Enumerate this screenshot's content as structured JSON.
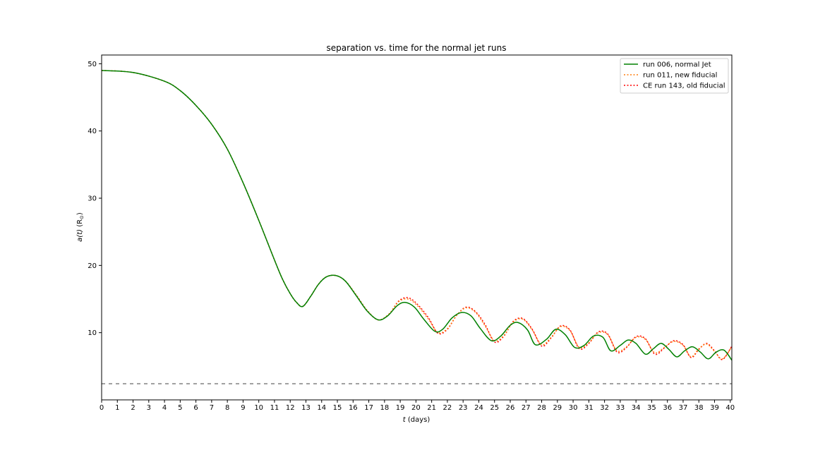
{
  "chart_data": {
    "type": "line",
    "title": "separation vs. time for the normal jet runs",
    "xlabel_italic": "t",
    "xlabel_rest": " (days)",
    "ylabel_italic": "a(t)",
    "ylabel_rest": " (R",
    "ylabel_sub": "⊙",
    "ylabel_close": ")",
    "xlim": [
      0,
      40.1
    ],
    "ylim": [
      0,
      51.3
    ],
    "xticks": [
      0,
      1,
      2,
      3,
      4,
      5,
      6,
      7,
      8,
      9,
      10,
      11,
      12,
      13,
      14,
      15,
      16,
      17,
      18,
      19,
      20,
      21,
      22,
      23,
      24,
      25,
      26,
      27,
      28,
      29,
      30,
      31,
      32,
      33,
      34,
      35,
      36,
      37,
      38,
      39,
      40
    ],
    "yticks": [
      10,
      20,
      30,
      40,
      50
    ],
    "grid": false,
    "legend_position": "top-right",
    "reference_line": {
      "y": 2.4,
      "style": "dashed",
      "color": "#808080"
    },
    "series": [
      {
        "name": "run 006, normal Jet",
        "color": "#008000",
        "style": "solid",
        "x": [
          0,
          2,
          4,
          5,
          6,
          7,
          8,
          9,
          10,
          11,
          11.5,
          12,
          12.4,
          12.8,
          13.3,
          13.8,
          14.3,
          14.9,
          15.5,
          16.2,
          16.9,
          17.6,
          18.2,
          18.8,
          19.3,
          19.9,
          20.5,
          21.2,
          21.7,
          22.3,
          22.9,
          23.5,
          24.1,
          24.8,
          25.4,
          26,
          26.5,
          27.1,
          27.6,
          28.3,
          28.9,
          29.5,
          30.1,
          30.7,
          31.3,
          31.9,
          32.4,
          33,
          33.5,
          34,
          34.6,
          35.1,
          35.6,
          36.1,
          36.6,
          37.1,
          37.6,
          38.1,
          38.6,
          39.1,
          39.6,
          40.1
        ],
        "y": [
          49,
          48.7,
          47.4,
          46,
          43.8,
          41,
          37.3,
          32.3,
          26.7,
          20.8,
          18,
          15.8,
          14.5,
          13.9,
          15.4,
          17.2,
          18.3,
          18.5,
          17.7,
          15.5,
          13.2,
          11.9,
          12.5,
          14,
          14.5,
          13.8,
          12,
          10.2,
          10.5,
          12.2,
          13,
          12.5,
          10.6,
          8.8,
          9.5,
          11.1,
          11.5,
          10.4,
          8.2,
          9,
          10.5,
          9.7,
          7.8,
          8.1,
          9.5,
          9.3,
          7.3,
          8.1,
          8.9,
          8.4,
          6.8,
          7.6,
          8.4,
          7.5,
          6.4,
          7.3,
          7.9,
          7.1,
          6.1,
          7.1,
          7.4,
          5.9
        ]
      },
      {
        "name": "run 011, new fiducial",
        "color": "#ff7f0e",
        "style": "dotted",
        "x": [
          0,
          2,
          4,
          5,
          6,
          7,
          8,
          9,
          10,
          11,
          11.5,
          12,
          12.4,
          12.8,
          13.3,
          13.8,
          14.3,
          14.9,
          15.5,
          16.2,
          16.9,
          17.6,
          18.3,
          18.9,
          19.5,
          20.1,
          20.8,
          21.4,
          22,
          22.6,
          23.2,
          23.8,
          24.4,
          25,
          25.6,
          26.2,
          26.8,
          27.4,
          28,
          28.6,
          29.2,
          29.8,
          30.4,
          31,
          31.6,
          32.2,
          32.8,
          33.4,
          34,
          34.6,
          35.2,
          35.8,
          36.4,
          37,
          37.5,
          38,
          38.5,
          39,
          39.5,
          40.1
        ],
        "y": [
          49,
          48.7,
          47.4,
          46,
          43.8,
          41,
          37.3,
          32.3,
          26.7,
          20.8,
          18,
          15.8,
          14.5,
          13.9,
          15.4,
          17.2,
          18.3,
          18.5,
          17.7,
          15.6,
          13.3,
          11.9,
          12.8,
          14.6,
          15,
          14,
          12,
          10,
          10.6,
          12.6,
          13.7,
          13,
          11,
          8.8,
          9.6,
          11.6,
          12,
          10.4,
          8.2,
          9.3,
          10.9,
          10.3,
          7.8,
          8.5,
          10,
          9.7,
          7.3,
          7.9,
          9.3,
          9,
          7,
          7.8,
          8.7,
          8.1,
          6.4,
          7.6,
          8.3,
          7.2,
          6.1,
          7.9
        ]
      },
      {
        "name": "CE run 143, old fiducial",
        "color": "#ff0000",
        "style": "dotted",
        "x": [
          0,
          2,
          4,
          5,
          6,
          7,
          8,
          9,
          10,
          11,
          11.5,
          12,
          12.4,
          12.8,
          13.3,
          13.8,
          14.3,
          14.9,
          15.5,
          16.2,
          16.9,
          17.6,
          18.3,
          18.9,
          19.5,
          20.1,
          20.8,
          21.4,
          22,
          22.6,
          23.2,
          23.8,
          24.4,
          25,
          25.6,
          26.2,
          26.8,
          27.4,
          28,
          28.6,
          29.2,
          29.8,
          30.4,
          31,
          31.6,
          32.2,
          32.8,
          33.4,
          34,
          34.6,
          35.2,
          35.8,
          36.4,
          37,
          37.5,
          38,
          38.5,
          39,
          39.5,
          40.1
        ],
        "y": [
          49,
          48.7,
          47.4,
          46,
          43.8,
          41,
          37.3,
          32.3,
          26.7,
          20.8,
          18,
          15.8,
          14.5,
          13.9,
          15.4,
          17.2,
          18.3,
          18.5,
          17.7,
          15.6,
          13.3,
          11.9,
          12.8,
          14.7,
          15.2,
          14.2,
          12.2,
          9.9,
          10.5,
          12.6,
          13.8,
          13.1,
          11.2,
          8.6,
          9.5,
          11.7,
          12.1,
          10.5,
          8,
          9.2,
          11,
          10.4,
          7.6,
          8.4,
          10.1,
          9.8,
          7.1,
          7.8,
          9.4,
          9.1,
          6.8,
          7.7,
          8.8,
          8.2,
          6.3,
          7.5,
          8.4,
          7.3,
          6,
          8
        ]
      }
    ]
  }
}
